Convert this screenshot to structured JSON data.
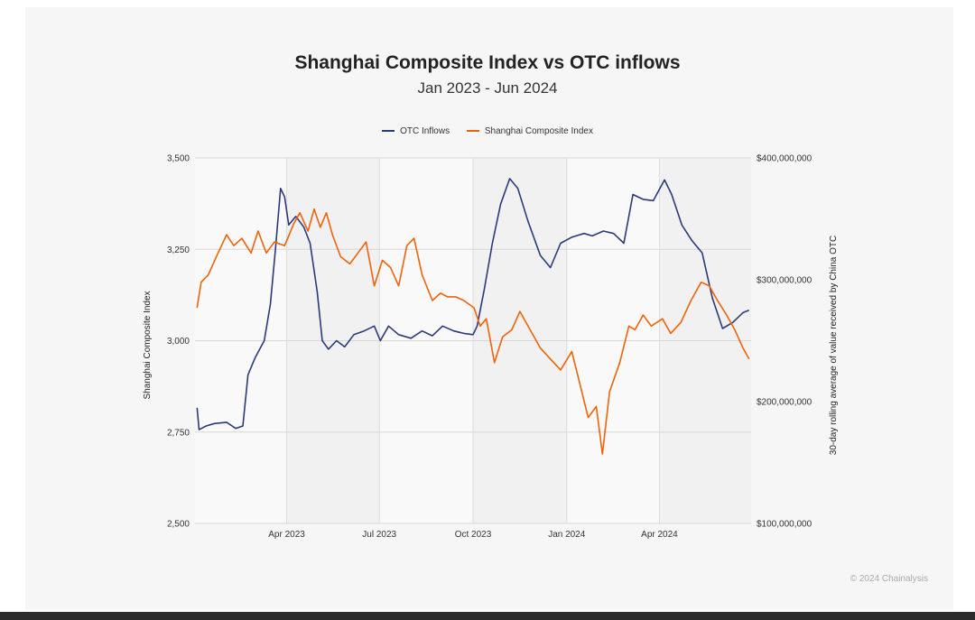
{
  "title": "Shanghai Composite Index vs OTC inflows",
  "subtitle": "Jan 2023 - Jun 2024",
  "copyright": "© 2024 Chainalysis",
  "legend": [
    {
      "label": "OTC Inflows",
      "color": "#2b3a7a"
    },
    {
      "label": "Shanghai Composite Index",
      "color": "#f0620a"
    }
  ],
  "chart_data": {
    "type": "line",
    "title": "Shanghai Composite Index vs OTC inflows",
    "subtitle": "Jan 2023 - Jun 2024",
    "xlabel": "",
    "ylabel": "Shanghai Composite Index",
    "y2label": "30-day rolling average of value received by China OTC",
    "xlim": [
      "2023-01-01",
      "2024-06-30"
    ],
    "x_ticks": [
      {
        "date": "2023-04-01",
        "label": "Apr 2023"
      },
      {
        "date": "2023-07-01",
        "label": "Jul 2023"
      },
      {
        "date": "2023-10-01",
        "label": "Oct 2023"
      },
      {
        "date": "2024-01-01",
        "label": "Jan 2024"
      },
      {
        "date": "2024-04-01",
        "label": "Apr 2024"
      }
    ],
    "ylim": [
      2500,
      3500
    ],
    "y_ticks": [
      2500,
      2750,
      3000,
      3250,
      3500
    ],
    "y_tick_labels": [
      "2,500",
      "2,750",
      "3,000",
      "3,250",
      "3,500"
    ],
    "y2lim": [
      100000000,
      400000000
    ],
    "y2_ticks": [
      100000000,
      200000000,
      300000000,
      400000000
    ],
    "y2_tick_labels": [
      "$100,000,000",
      "$200,000,000",
      "$300,000,000",
      "$400,000,000"
    ],
    "grid": true,
    "legend_position": "top",
    "series": [
      {
        "name": "OTC Inflows",
        "axis": "right",
        "color": "#2b3a7a",
        "points": [
          [
            "2023-01-03",
            195000000
          ],
          [
            "2023-01-05",
            177000000
          ],
          [
            "2023-01-12",
            180000000
          ],
          [
            "2023-01-20",
            182000000
          ],
          [
            "2023-02-01",
            183000000
          ],
          [
            "2023-02-10",
            178000000
          ],
          [
            "2023-02-17",
            180000000
          ],
          [
            "2023-02-22",
            222000000
          ],
          [
            "2023-03-01",
            236000000
          ],
          [
            "2023-03-10",
            250000000
          ],
          [
            "2023-03-16",
            280000000
          ],
          [
            "2023-03-21",
            325000000
          ],
          [
            "2023-03-26",
            375000000
          ],
          [
            "2023-03-30",
            368000000
          ],
          [
            "2023-04-03",
            345000000
          ],
          [
            "2023-04-10",
            352000000
          ],
          [
            "2023-04-18",
            343000000
          ],
          [
            "2023-04-24",
            330000000
          ],
          [
            "2023-05-01",
            290000000
          ],
          [
            "2023-05-06",
            250000000
          ],
          [
            "2023-05-12",
            243000000
          ],
          [
            "2023-05-20",
            250000000
          ],
          [
            "2023-05-28",
            245000000
          ],
          [
            "2023-06-06",
            255000000
          ],
          [
            "2023-06-16",
            258000000
          ],
          [
            "2023-06-26",
            262000000
          ],
          [
            "2023-07-02",
            250000000
          ],
          [
            "2023-07-10",
            262000000
          ],
          [
            "2023-07-20",
            255000000
          ],
          [
            "2023-08-01",
            252000000
          ],
          [
            "2023-08-12",
            258000000
          ],
          [
            "2023-08-22",
            254000000
          ],
          [
            "2023-09-01",
            262000000
          ],
          [
            "2023-09-12",
            258000000
          ],
          [
            "2023-09-22",
            256000000
          ],
          [
            "2023-10-01",
            255000000
          ],
          [
            "2023-10-05",
            262000000
          ],
          [
            "2023-10-12",
            292000000
          ],
          [
            "2023-10-20",
            330000000
          ],
          [
            "2023-10-28",
            362000000
          ],
          [
            "2023-11-06",
            383000000
          ],
          [
            "2023-11-14",
            375000000
          ],
          [
            "2023-11-24",
            348000000
          ],
          [
            "2023-12-06",
            320000000
          ],
          [
            "2023-12-16",
            310000000
          ],
          [
            "2023-12-26",
            330000000
          ],
          [
            "2024-01-06",
            335000000
          ],
          [
            "2024-01-18",
            338000000
          ],
          [
            "2024-01-26",
            336000000
          ],
          [
            "2024-02-06",
            340000000
          ],
          [
            "2024-02-16",
            338000000
          ],
          [
            "2024-02-26",
            330000000
          ],
          [
            "2024-03-06",
            370000000
          ],
          [
            "2024-03-16",
            366000000
          ],
          [
            "2024-03-26",
            365000000
          ],
          [
            "2024-04-06",
            382000000
          ],
          [
            "2024-04-13",
            370000000
          ],
          [
            "2024-04-23",
            345000000
          ],
          [
            "2024-05-03",
            332000000
          ],
          [
            "2024-05-13",
            322000000
          ],
          [
            "2024-05-23",
            285000000
          ],
          [
            "2024-06-02",
            260000000
          ],
          [
            "2024-06-12",
            265000000
          ],
          [
            "2024-06-22",
            273000000
          ],
          [
            "2024-06-28",
            275000000
          ]
        ]
      },
      {
        "name": "Shanghai Composite Index",
        "axis": "left",
        "color": "#f0620a",
        "points": [
          [
            "2023-01-03",
            3090
          ],
          [
            "2023-01-07",
            3160
          ],
          [
            "2023-01-14",
            3180
          ],
          [
            "2023-01-22",
            3230
          ],
          [
            "2023-02-01",
            3290
          ],
          [
            "2023-02-08",
            3260
          ],
          [
            "2023-02-16",
            3280
          ],
          [
            "2023-02-25",
            3240
          ],
          [
            "2023-03-04",
            3300
          ],
          [
            "2023-03-12",
            3240
          ],
          [
            "2023-03-20",
            3270
          ],
          [
            "2023-03-30",
            3260
          ],
          [
            "2023-04-08",
            3320
          ],
          [
            "2023-04-14",
            3350
          ],
          [
            "2023-04-22",
            3300
          ],
          [
            "2023-04-28",
            3360
          ],
          [
            "2023-05-04",
            3310
          ],
          [
            "2023-05-10",
            3350
          ],
          [
            "2023-05-16",
            3290
          ],
          [
            "2023-05-24",
            3230
          ],
          [
            "2023-06-02",
            3210
          ],
          [
            "2023-06-10",
            3240
          ],
          [
            "2023-06-18",
            3270
          ],
          [
            "2023-06-26",
            3150
          ],
          [
            "2023-07-04",
            3220
          ],
          [
            "2023-07-12",
            3200
          ],
          [
            "2023-07-20",
            3150
          ],
          [
            "2023-07-28",
            3260
          ],
          [
            "2023-08-04",
            3280
          ],
          [
            "2023-08-12",
            3180
          ],
          [
            "2023-08-22",
            3110
          ],
          [
            "2023-08-30",
            3130
          ],
          [
            "2023-09-06",
            3120
          ],
          [
            "2023-09-14",
            3120
          ],
          [
            "2023-09-22",
            3110
          ],
          [
            "2023-10-02",
            3090
          ],
          [
            "2023-10-08",
            3040
          ],
          [
            "2023-10-14",
            3060
          ],
          [
            "2023-10-22",
            2940
          ],
          [
            "2023-10-30",
            3010
          ],
          [
            "2023-11-08",
            3030
          ],
          [
            "2023-11-16",
            3080
          ],
          [
            "2023-11-26",
            3030
          ],
          [
            "2023-12-06",
            2980
          ],
          [
            "2023-12-16",
            2950
          ],
          [
            "2023-12-26",
            2920
          ],
          [
            "2024-01-06",
            2970
          ],
          [
            "2024-01-14",
            2880
          ],
          [
            "2024-01-22",
            2790
          ],
          [
            "2024-01-30",
            2820
          ],
          [
            "2024-02-05",
            2690
          ],
          [
            "2024-02-12",
            2860
          ],
          [
            "2024-02-22",
            2940
          ],
          [
            "2024-03-02",
            3040
          ],
          [
            "2024-03-08",
            3030
          ],
          [
            "2024-03-16",
            3070
          ],
          [
            "2024-03-24",
            3040
          ],
          [
            "2024-04-04",
            3060
          ],
          [
            "2024-04-12",
            3020
          ],
          [
            "2024-04-22",
            3050
          ],
          [
            "2024-05-02",
            3110
          ],
          [
            "2024-05-12",
            3160
          ],
          [
            "2024-05-20",
            3150
          ],
          [
            "2024-05-28",
            3110
          ],
          [
            "2024-06-06",
            3070
          ],
          [
            "2024-06-14",
            3030
          ],
          [
            "2024-06-22",
            2980
          ],
          [
            "2024-06-28",
            2950
          ]
        ]
      }
    ]
  }
}
